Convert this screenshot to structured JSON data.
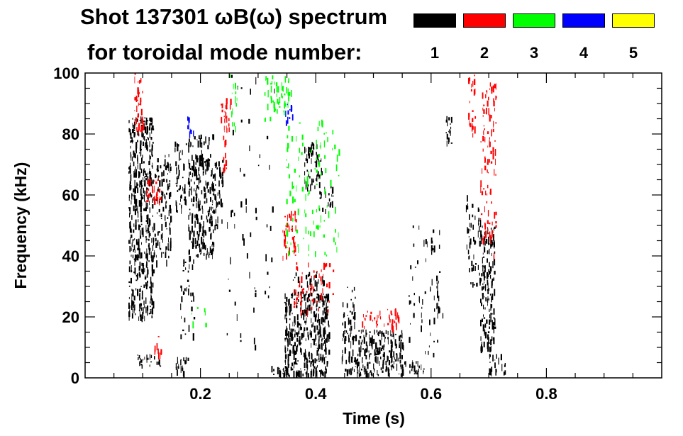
{
  "chart_data": {
    "type": "heatmap",
    "title_line1": "Shot 137301 ωB(ω) spectrum",
    "title_line2": "for toroidal mode number:",
    "xlabel": "Time (s)",
    "ylabel": "Frequency (kHz)",
    "xlim": [
      0.0,
      1.0
    ],
    "ylim": [
      0,
      100
    ],
    "x_ticks": [
      0.2,
      0.4,
      0.6,
      0.8
    ],
    "x_tick_labels": [
      "0.2",
      "0.4",
      "0.6",
      "0.8"
    ],
    "y_ticks": [
      0,
      20,
      40,
      60,
      80,
      100
    ],
    "y_tick_labels": [
      "0",
      "20",
      "40",
      "60",
      "80",
      "100"
    ],
    "legend": [
      {
        "label": "1",
        "color": "#000000"
      },
      {
        "label": "2",
        "color": "#ff0000"
      },
      {
        "label": "3",
        "color": "#00ff00"
      },
      {
        "label": "4",
        "color": "#0000ff"
      },
      {
        "label": "5",
        "color": "#ffff00"
      }
    ],
    "legend_position": "top-right",
    "grid": false,
    "regions": [
      {
        "mode": 1,
        "t": [
          0.075,
          0.118
        ],
        "f": [
          20,
          86
        ],
        "density": 0.75
      },
      {
        "mode": 1,
        "t": [
          0.118,
          0.148
        ],
        "f": [
          38,
          74
        ],
        "density": 0.45
      },
      {
        "mode": 1,
        "t": [
          0.09,
          0.13
        ],
        "f": [
          4,
          8
        ],
        "density": 0.7
      },
      {
        "mode": 1,
        "t": [
          0.155,
          0.178
        ],
        "f": [
          2,
          7
        ],
        "density": 0.7
      },
      {
        "mode": 1,
        "t": [
          0.155,
          0.175
        ],
        "f": [
          55,
          78
        ],
        "density": 0.5
      },
      {
        "mode": 1,
        "t": [
          0.178,
          0.222
        ],
        "f": [
          40,
          80
        ],
        "density": 0.65
      },
      {
        "mode": 1,
        "t": [
          0.165,
          0.19
        ],
        "f": [
          14,
          40
        ],
        "density": 0.25
      },
      {
        "mode": 1,
        "t": [
          0.215,
          0.238
        ],
        "f": [
          50,
          72
        ],
        "density": 0.5
      },
      {
        "mode": 1,
        "t": [
          0.322,
          0.352
        ],
        "f": [
          1,
          4
        ],
        "density": 0.8
      },
      {
        "mode": 1,
        "t": [
          0.345,
          0.423
        ],
        "f": [
          1,
          28
        ],
        "density": 0.85
      },
      {
        "mode": 1,
        "t": [
          0.355,
          0.415
        ],
        "f": [
          28,
          35
        ],
        "density": 0.35
      },
      {
        "mode": 1,
        "t": [
          0.38,
          0.41
        ],
        "f": [
          63,
          78
        ],
        "density": 0.65
      },
      {
        "mode": 1,
        "t": [
          0.405,
          0.43
        ],
        "f": [
          55,
          63
        ],
        "density": 0.5
      },
      {
        "mode": 1,
        "t": [
          0.445,
          0.468
        ],
        "f": [
          2,
          30
        ],
        "density": 0.5
      },
      {
        "mode": 1,
        "t": [
          0.468,
          0.552
        ],
        "f": [
          1,
          16
        ],
        "density": 0.75
      },
      {
        "mode": 1,
        "t": [
          0.552,
          0.588
        ],
        "f": [
          1,
          6
        ],
        "density": 0.6
      },
      {
        "mode": 1,
        "t": [
          0.56,
          0.62
        ],
        "f": [
          8,
          50
        ],
        "density": 0.12
      },
      {
        "mode": 1,
        "t": [
          0.625,
          0.635
        ],
        "f": [
          76,
          90
        ],
        "density": 0.5
      },
      {
        "mode": 1,
        "t": [
          0.66,
          0.685
        ],
        "f": [
          30,
          60
        ],
        "density": 0.3
      },
      {
        "mode": 1,
        "t": [
          0.685,
          0.71
        ],
        "f": [
          10,
          50
        ],
        "density": 0.75
      },
      {
        "mode": 1,
        "t": [
          0.7,
          0.73
        ],
        "f": [
          2,
          8
        ],
        "density": 0.5
      },
      {
        "mode": 1,
        "t": [
          0.245,
          0.33
        ],
        "f": [
          0,
          100
        ],
        "density": 0.03
      },
      {
        "mode": 2,
        "t": [
          0.085,
          0.1
        ],
        "f": [
          80,
          100
        ],
        "density": 0.6
      },
      {
        "mode": 2,
        "t": [
          0.105,
          0.13
        ],
        "f": [
          58,
          66
        ],
        "density": 0.6
      },
      {
        "mode": 2,
        "t": [
          0.12,
          0.135
        ],
        "f": [
          8,
          14
        ],
        "density": 0.6
      },
      {
        "mode": 2,
        "t": [
          0.235,
          0.252
        ],
        "f": [
          82,
          92
        ],
        "density": 0.65
      },
      {
        "mode": 2,
        "t": [
          0.238,
          0.246
        ],
        "f": [
          68,
          82
        ],
        "density": 0.4
      },
      {
        "mode": 2,
        "t": [
          0.342,
          0.365
        ],
        "f": [
          40,
          55
        ],
        "density": 0.55
      },
      {
        "mode": 2,
        "t": [
          0.36,
          0.43
        ],
        "f": [
          22,
          38
        ],
        "density": 0.25
      },
      {
        "mode": 2,
        "t": [
          0.48,
          0.545
        ],
        "f": [
          17,
          23
        ],
        "density": 0.5
      },
      {
        "mode": 2,
        "t": [
          0.685,
          0.712
        ],
        "f": [
          40,
          98
        ],
        "density": 0.3
      },
      {
        "mode": 2,
        "t": [
          0.664,
          0.676
        ],
        "f": [
          80,
          100
        ],
        "density": 0.4
      },
      {
        "mode": 3,
        "t": [
          0.31,
          0.36
        ],
        "f": [
          85,
          100
        ],
        "density": 0.35
      },
      {
        "mode": 3,
        "t": [
          0.345,
          0.44
        ],
        "f": [
          40,
          85
        ],
        "density": 0.12
      },
      {
        "mode": 3,
        "t": [
          0.25,
          0.265
        ],
        "f": [
          78,
          100
        ],
        "density": 0.2
      },
      {
        "mode": 3,
        "t": [
          0.17,
          0.21
        ],
        "f": [
          18,
          24
        ],
        "density": 0.08
      },
      {
        "mode": 4,
        "t": [
          0.175,
          0.19
        ],
        "f": [
          80,
          86
        ],
        "density": 0.3
      },
      {
        "mode": 4,
        "t": [
          0.345,
          0.36
        ],
        "f": [
          84,
          90
        ],
        "density": 0.4
      }
    ]
  }
}
